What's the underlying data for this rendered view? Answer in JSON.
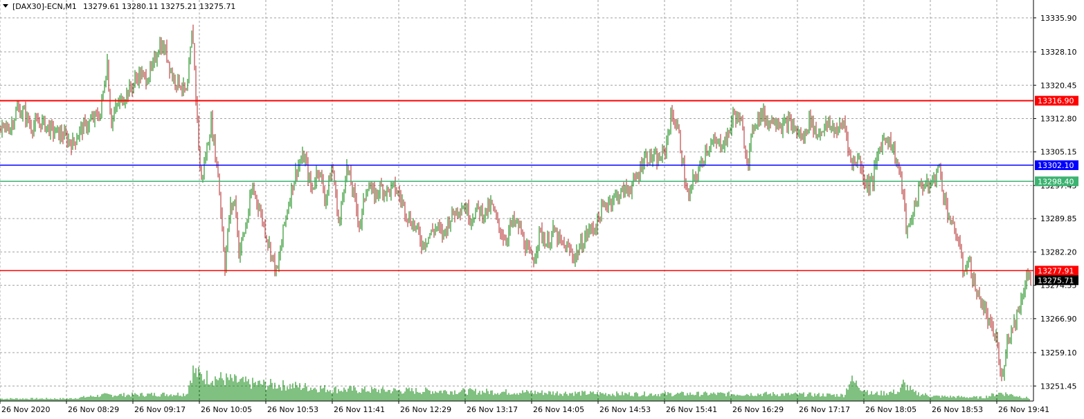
{
  "header": {
    "symbol_label": "[DAX30]-ECN,M1",
    "ohlc": "13279.61 13280.11 13275.21 13275.71",
    "menu_icon": "triangle-down-icon"
  },
  "chart_data": {
    "type": "candlestick",
    "symbol": "[DAX30]-ECN",
    "timeframe": "M1",
    "open": 13279.61,
    "high": 13280.11,
    "low": 13275.21,
    "close": 13275.71,
    "ylim": [
      13248.0,
      13340.0
    ],
    "y_ticks": [
      {
        "value": 13335.9,
        "label": "13335.90"
      },
      {
        "value": 13328.1,
        "label": "13328.10"
      },
      {
        "value": 13320.45,
        "label": "13320.45"
      },
      {
        "value": 13312.8,
        "label": "13312.80"
      },
      {
        "value": 13305.15,
        "label": "13305.15"
      },
      {
        "value": 13297.45,
        "label": "13297.45"
      },
      {
        "value": 13289.85,
        "label": "13289.85"
      },
      {
        "value": 13282.2,
        "label": "13282.20"
      },
      {
        "value": 13274.55,
        "label": "13274.55"
      },
      {
        "value": 13266.9,
        "label": "13266.90"
      },
      {
        "value": 13259.1,
        "label": "13259.10"
      },
      {
        "value": 13251.45,
        "label": "13251.45"
      }
    ],
    "x_ticks": [
      "26 Nov 2020",
      "26 Nov 08:29",
      "26 Nov 09:17",
      "26 Nov 10:05",
      "26 Nov 10:53",
      "26 Nov 11:41",
      "26 Nov 12:29",
      "26 Nov 13:17",
      "26 Nov 14:05",
      "26 Nov 14:53",
      "26 Nov 15:41",
      "26 Nov 16:29",
      "26 Nov 17:17",
      "26 Nov 18:05",
      "26 Nov 18:53",
      "26 Nov 19:41"
    ],
    "horizontal_lines": [
      {
        "value": 13316.9,
        "label": "13316.90",
        "color": "#ff0000"
      },
      {
        "value": 13302.1,
        "label": "13302.10",
        "color": "#0000ff"
      },
      {
        "value": 13298.4,
        "label": "13298.40",
        "color": "#3cb371"
      },
      {
        "value": 13277.91,
        "label": "13277.91",
        "color": "#ff0000"
      }
    ],
    "current_price": {
      "value": 13275.71,
      "label": "13275.71",
      "color": "#000000"
    },
    "price_path": [
      [
        0,
        13310
      ],
      [
        15,
        13311
      ],
      [
        25,
        13315
      ],
      [
        35,
        13314
      ],
      [
        45,
        13311
      ],
      [
        60,
        13312
      ],
      [
        75,
        13310
      ],
      [
        90,
        13309
      ],
      [
        105,
        13307
      ],
      [
        115,
        13310
      ],
      [
        130,
        13312
      ],
      [
        145,
        13314
      ],
      [
        155,
        13326
      ],
      [
        160,
        13312
      ],
      [
        170,
        13316
      ],
      [
        180,
        13318
      ],
      [
        190,
        13320
      ],
      [
        200,
        13323
      ],
      [
        210,
        13322
      ],
      [
        220,
        13324
      ],
      [
        230,
        13330
      ],
      [
        240,
        13328
      ],
      [
        250,
        13322
      ],
      [
        260,
        13321
      ],
      [
        270,
        13318
      ],
      [
        278,
        13334
      ],
      [
        283,
        13318
      ],
      [
        290,
        13298
      ],
      [
        298,
        13305
      ],
      [
        305,
        13312
      ],
      [
        315,
        13300
      ],
      [
        320,
        13290
      ],
      [
        325,
        13279
      ],
      [
        332,
        13292
      ],
      [
        340,
        13294
      ],
      [
        345,
        13282
      ],
      [
        355,
        13288
      ],
      [
        365,
        13297
      ],
      [
        375,
        13292
      ],
      [
        385,
        13286
      ],
      [
        395,
        13280
      ],
      [
        400,
        13277
      ],
      [
        410,
        13288
      ],
      [
        420,
        13296
      ],
      [
        430,
        13302
      ],
      [
        440,
        13304
      ],
      [
        450,
        13296
      ],
      [
        460,
        13302
      ],
      [
        470,
        13294
      ],
      [
        480,
        13302
      ],
      [
        490,
        13288
      ],
      [
        500,
        13302
      ],
      [
        510,
        13296
      ],
      [
        520,
        13288
      ],
      [
        530,
        13298
      ],
      [
        540,
        13295
      ],
      [
        550,
        13297
      ],
      [
        560,
        13296
      ],
      [
        570,
        13297
      ],
      [
        580,
        13294
      ],
      [
        590,
        13290
      ],
      [
        600,
        13288
      ],
      [
        610,
        13284
      ],
      [
        620,
        13286
      ],
      [
        630,
        13288
      ],
      [
        640,
        13286
      ],
      [
        650,
        13290
      ],
      [
        660,
        13292
      ],
      [
        670,
        13293
      ],
      [
        680,
        13290
      ],
      [
        690,
        13292
      ],
      [
        700,
        13291
      ],
      [
        710,
        13293
      ],
      [
        720,
        13288
      ],
      [
        730,
        13285
      ],
      [
        740,
        13289
      ],
      [
        750,
        13288
      ],
      [
        760,
        13283
      ],
      [
        770,
        13280
      ],
      [
        780,
        13287
      ],
      [
        790,
        13284
      ],
      [
        800,
        13287
      ],
      [
        810,
        13284
      ],
      [
        820,
        13283
      ],
      [
        830,
        13281
      ],
      [
        840,
        13284
      ],
      [
        850,
        13287
      ],
      [
        860,
        13288
      ],
      [
        870,
        13292
      ],
      [
        880,
        13294
      ],
      [
        890,
        13295
      ],
      [
        900,
        13296
      ],
      [
        910,
        13297
      ],
      [
        920,
        13299
      ],
      [
        930,
        13304
      ],
      [
        940,
        13304
      ],
      [
        950,
        13303
      ],
      [
        960,
        13305
      ],
      [
        970,
        13314
      ],
      [
        980,
        13310
      ],
      [
        990,
        13298
      ],
      [
        995,
        13294
      ],
      [
        1000,
        13298
      ],
      [
        1010,
        13301
      ],
      [
        1020,
        13306
      ],
      [
        1030,
        13307
      ],
      [
        1040,
        13307
      ],
      [
        1050,
        13308
      ],
      [
        1060,
        13314
      ],
      [
        1070,
        13312
      ],
      [
        1080,
        13303
      ],
      [
        1090,
        13312
      ],
      [
        1100,
        13314
      ],
      [
        1110,
        13312
      ],
      [
        1120,
        13313
      ],
      [
        1130,
        13311
      ],
      [
        1140,
        13312
      ],
      [
        1150,
        13310
      ],
      [
        1160,
        13308
      ],
      [
        1170,
        13313
      ],
      [
        1180,
        13309
      ],
      [
        1190,
        13311
      ],
      [
        1200,
        13311
      ],
      [
        1210,
        13310
      ],
      [
        1220,
        13312
      ],
      [
        1230,
        13302
      ],
      [
        1240,
        13304
      ],
      [
        1250,
        13298
      ],
      [
        1260,
        13298
      ],
      [
        1270,
        13306
      ],
      [
        1280,
        13309
      ],
      [
        1290,
        13306
      ],
      [
        1300,
        13300
      ],
      [
        1305,
        13295
      ],
      [
        1310,
        13286
      ],
      [
        1320,
        13292
      ],
      [
        1330,
        13298
      ],
      [
        1340,
        13297
      ],
      [
        1350,
        13299
      ],
      [
        1356,
        13302
      ],
      [
        1365,
        13294
      ],
      [
        1375,
        13288
      ],
      [
        1385,
        13285
      ],
      [
        1390,
        13278
      ],
      [
        1400,
        13280
      ],
      [
        1410,
        13273
      ],
      [
        1420,
        13270
      ],
      [
        1430,
        13265
      ],
      [
        1440,
        13262
      ],
      [
        1446,
        13252
      ],
      [
        1455,
        13262
      ],
      [
        1465,
        13266
      ],
      [
        1475,
        13271
      ],
      [
        1483,
        13277
      ],
      [
        1490,
        13275
      ]
    ],
    "volume_path": [
      [
        0,
        4
      ],
      [
        100,
        4
      ],
      [
        150,
        10
      ],
      [
        270,
        12
      ],
      [
        278,
        52
      ],
      [
        290,
        42
      ],
      [
        320,
        38
      ],
      [
        360,
        30
      ],
      [
        420,
        26
      ],
      [
        480,
        20
      ],
      [
        560,
        18
      ],
      [
        700,
        16
      ],
      [
        900,
        12
      ],
      [
        1000,
        12
      ],
      [
        1100,
        12
      ],
      [
        1220,
        10
      ],
      [
        1228,
        36
      ],
      [
        1260,
        12
      ],
      [
        1300,
        16
      ],
      [
        1305,
        30
      ],
      [
        1320,
        14
      ],
      [
        1350,
        8
      ],
      [
        1420,
        6
      ],
      [
        1446,
        14
      ],
      [
        1490,
        4
      ]
    ]
  }
}
